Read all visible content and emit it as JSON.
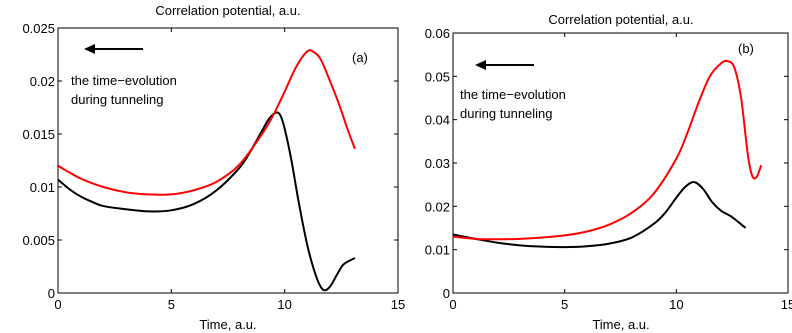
{
  "chart_data": [
    {
      "type": "line",
      "panel_label": "(a)",
      "title": "Correlation potential, a.u.",
      "xlabel": "Time, a.u.",
      "ylabel": "",
      "xlim": [
        0,
        15
      ],
      "ylim": [
        0,
        0.025
      ],
      "xticks": [
        0,
        5,
        10,
        15
      ],
      "yticks": [
        0,
        0.005,
        0.01,
        0.015,
        0.02,
        0.025
      ],
      "xtick_labels": [
        "0",
        "5",
        "10",
        "15"
      ],
      "ytick_labels": [
        "0",
        "0.005",
        "0.01",
        "0.015",
        "0.02",
        "0.025"
      ],
      "annotation": [
        "the time−evolution",
        "during tunneling"
      ],
      "arrow": "left",
      "series": [
        {
          "color": "#000000",
          "x": [
            0,
            0.5,
            1,
            1.5,
            2,
            3,
            4,
            5,
            6,
            7,
            8,
            8.5,
            9,
            9.3,
            9.6,
            9.8,
            10,
            10.3,
            10.6,
            11,
            11.4,
            11.7,
            12,
            12.3,
            12.6,
            13.1
          ],
          "y": [
            0.0107,
            0.0098,
            0.0091,
            0.0086,
            0.0082,
            0.0079,
            0.0077,
            0.0078,
            0.0084,
            0.0097,
            0.0118,
            0.0134,
            0.0153,
            0.0164,
            0.017,
            0.0168,
            0.0155,
            0.0125,
            0.0088,
            0.0045,
            0.0015,
            0.0003,
            0.0006,
            0.0017,
            0.0027,
            0.0033
          ]
        },
        {
          "color": "#ff0000",
          "x": [
            0,
            1,
            2,
            3,
            4,
            5,
            6,
            7,
            8,
            9,
            9.5,
            10,
            10.5,
            11,
            11.3,
            11.6,
            12,
            12.4,
            12.8,
            13.1
          ],
          "y": [
            0.012,
            0.0108,
            0.01,
            0.0095,
            0.0093,
            0.0093,
            0.0097,
            0.0105,
            0.0121,
            0.015,
            0.0168,
            0.019,
            0.0213,
            0.0228,
            0.0227,
            0.022,
            0.02,
            0.0178,
            0.0153,
            0.0136
          ]
        }
      ]
    },
    {
      "type": "line",
      "panel_label": "(b)",
      "title": "Correlation potential, a.u.",
      "xlabel": "Time, a.u.",
      "ylabel": "",
      "xlim": [
        0,
        15
      ],
      "ylim": [
        0,
        0.06
      ],
      "xticks": [
        0,
        5,
        10,
        15
      ],
      "yticks": [
        0,
        0.01,
        0.02,
        0.03,
        0.04,
        0.05,
        0.06
      ],
      "xtick_labels": [
        "0",
        "5",
        "10",
        "15"
      ],
      "ytick_labels": [
        "0",
        "0.01",
        "0.02",
        "0.03",
        "0.04",
        "0.05",
        "0.06"
      ],
      "annotation": [
        "the time−evolution",
        "during tunneling"
      ],
      "arrow": "left",
      "series": [
        {
          "color": "#000000",
          "x": [
            0,
            1,
            2,
            3,
            4,
            5,
            6,
            7,
            8,
            9,
            9.5,
            10,
            10.4,
            10.8,
            11.2,
            11.6,
            12,
            12.5,
            13.1
          ],
          "y": [
            0.0135,
            0.0125,
            0.0116,
            0.011,
            0.0107,
            0.0106,
            0.0108,
            0.0114,
            0.0128,
            0.016,
            0.0185,
            0.022,
            0.0245,
            0.0256,
            0.024,
            0.021,
            0.019,
            0.0175,
            0.015
          ]
        },
        {
          "color": "#ff0000",
          "x": [
            0,
            1,
            2,
            3,
            4,
            5,
            6,
            7,
            8,
            9,
            10,
            10.5,
            11,
            11.5,
            12,
            12.3,
            12.6,
            12.9,
            13.2,
            13.4,
            13.6,
            13.8
          ],
          "y": [
            0.013,
            0.0125,
            0.0124,
            0.0125,
            0.0128,
            0.0133,
            0.0142,
            0.0158,
            0.0185,
            0.023,
            0.031,
            0.037,
            0.044,
            0.05,
            0.053,
            0.0535,
            0.052,
            0.045,
            0.032,
            0.027,
            0.0268,
            0.0295
          ]
        }
      ]
    }
  ]
}
